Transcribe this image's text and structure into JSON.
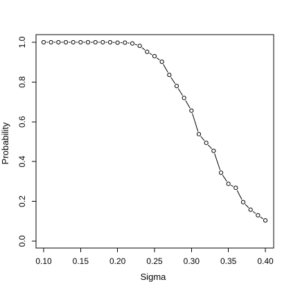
{
  "chart_data": {
    "type": "line",
    "title": "",
    "xlabel": "Sigma",
    "ylabel": "Probability",
    "xlim": [
      0.1,
      0.4
    ],
    "ylim": [
      0.0,
      1.0
    ],
    "xticks": [
      "0.10",
      "0.15",
      "0.20",
      "0.25",
      "0.30",
      "0.35",
      "0.40"
    ],
    "yticks": [
      "0.0",
      "0.2",
      "0.4",
      "0.6",
      "0.8",
      "1.0"
    ],
    "grid": false,
    "legend": "none",
    "series": [
      {
        "x": [
          0.1,
          0.11,
          0.12,
          0.13,
          0.14,
          0.15,
          0.16,
          0.17,
          0.18,
          0.19,
          0.2,
          0.21,
          0.22,
          0.23,
          0.24,
          0.25,
          0.26,
          0.27,
          0.28,
          0.29,
          0.3,
          0.31,
          0.32,
          0.33,
          0.34,
          0.35,
          0.36,
          0.37,
          0.38,
          0.39,
          0.4
        ],
        "y": [
          1.0,
          1.0,
          1.0,
          1.0,
          1.0,
          1.0,
          1.0,
          1.0,
          1.0,
          1.0,
          0.998,
          0.998,
          0.994,
          0.982,
          0.952,
          0.93,
          0.902,
          0.836,
          0.78,
          0.72,
          0.656,
          0.538,
          0.494,
          0.454,
          0.344,
          0.288,
          0.268,
          0.196,
          0.158,
          0.13,
          0.104
        ]
      }
    ]
  }
}
